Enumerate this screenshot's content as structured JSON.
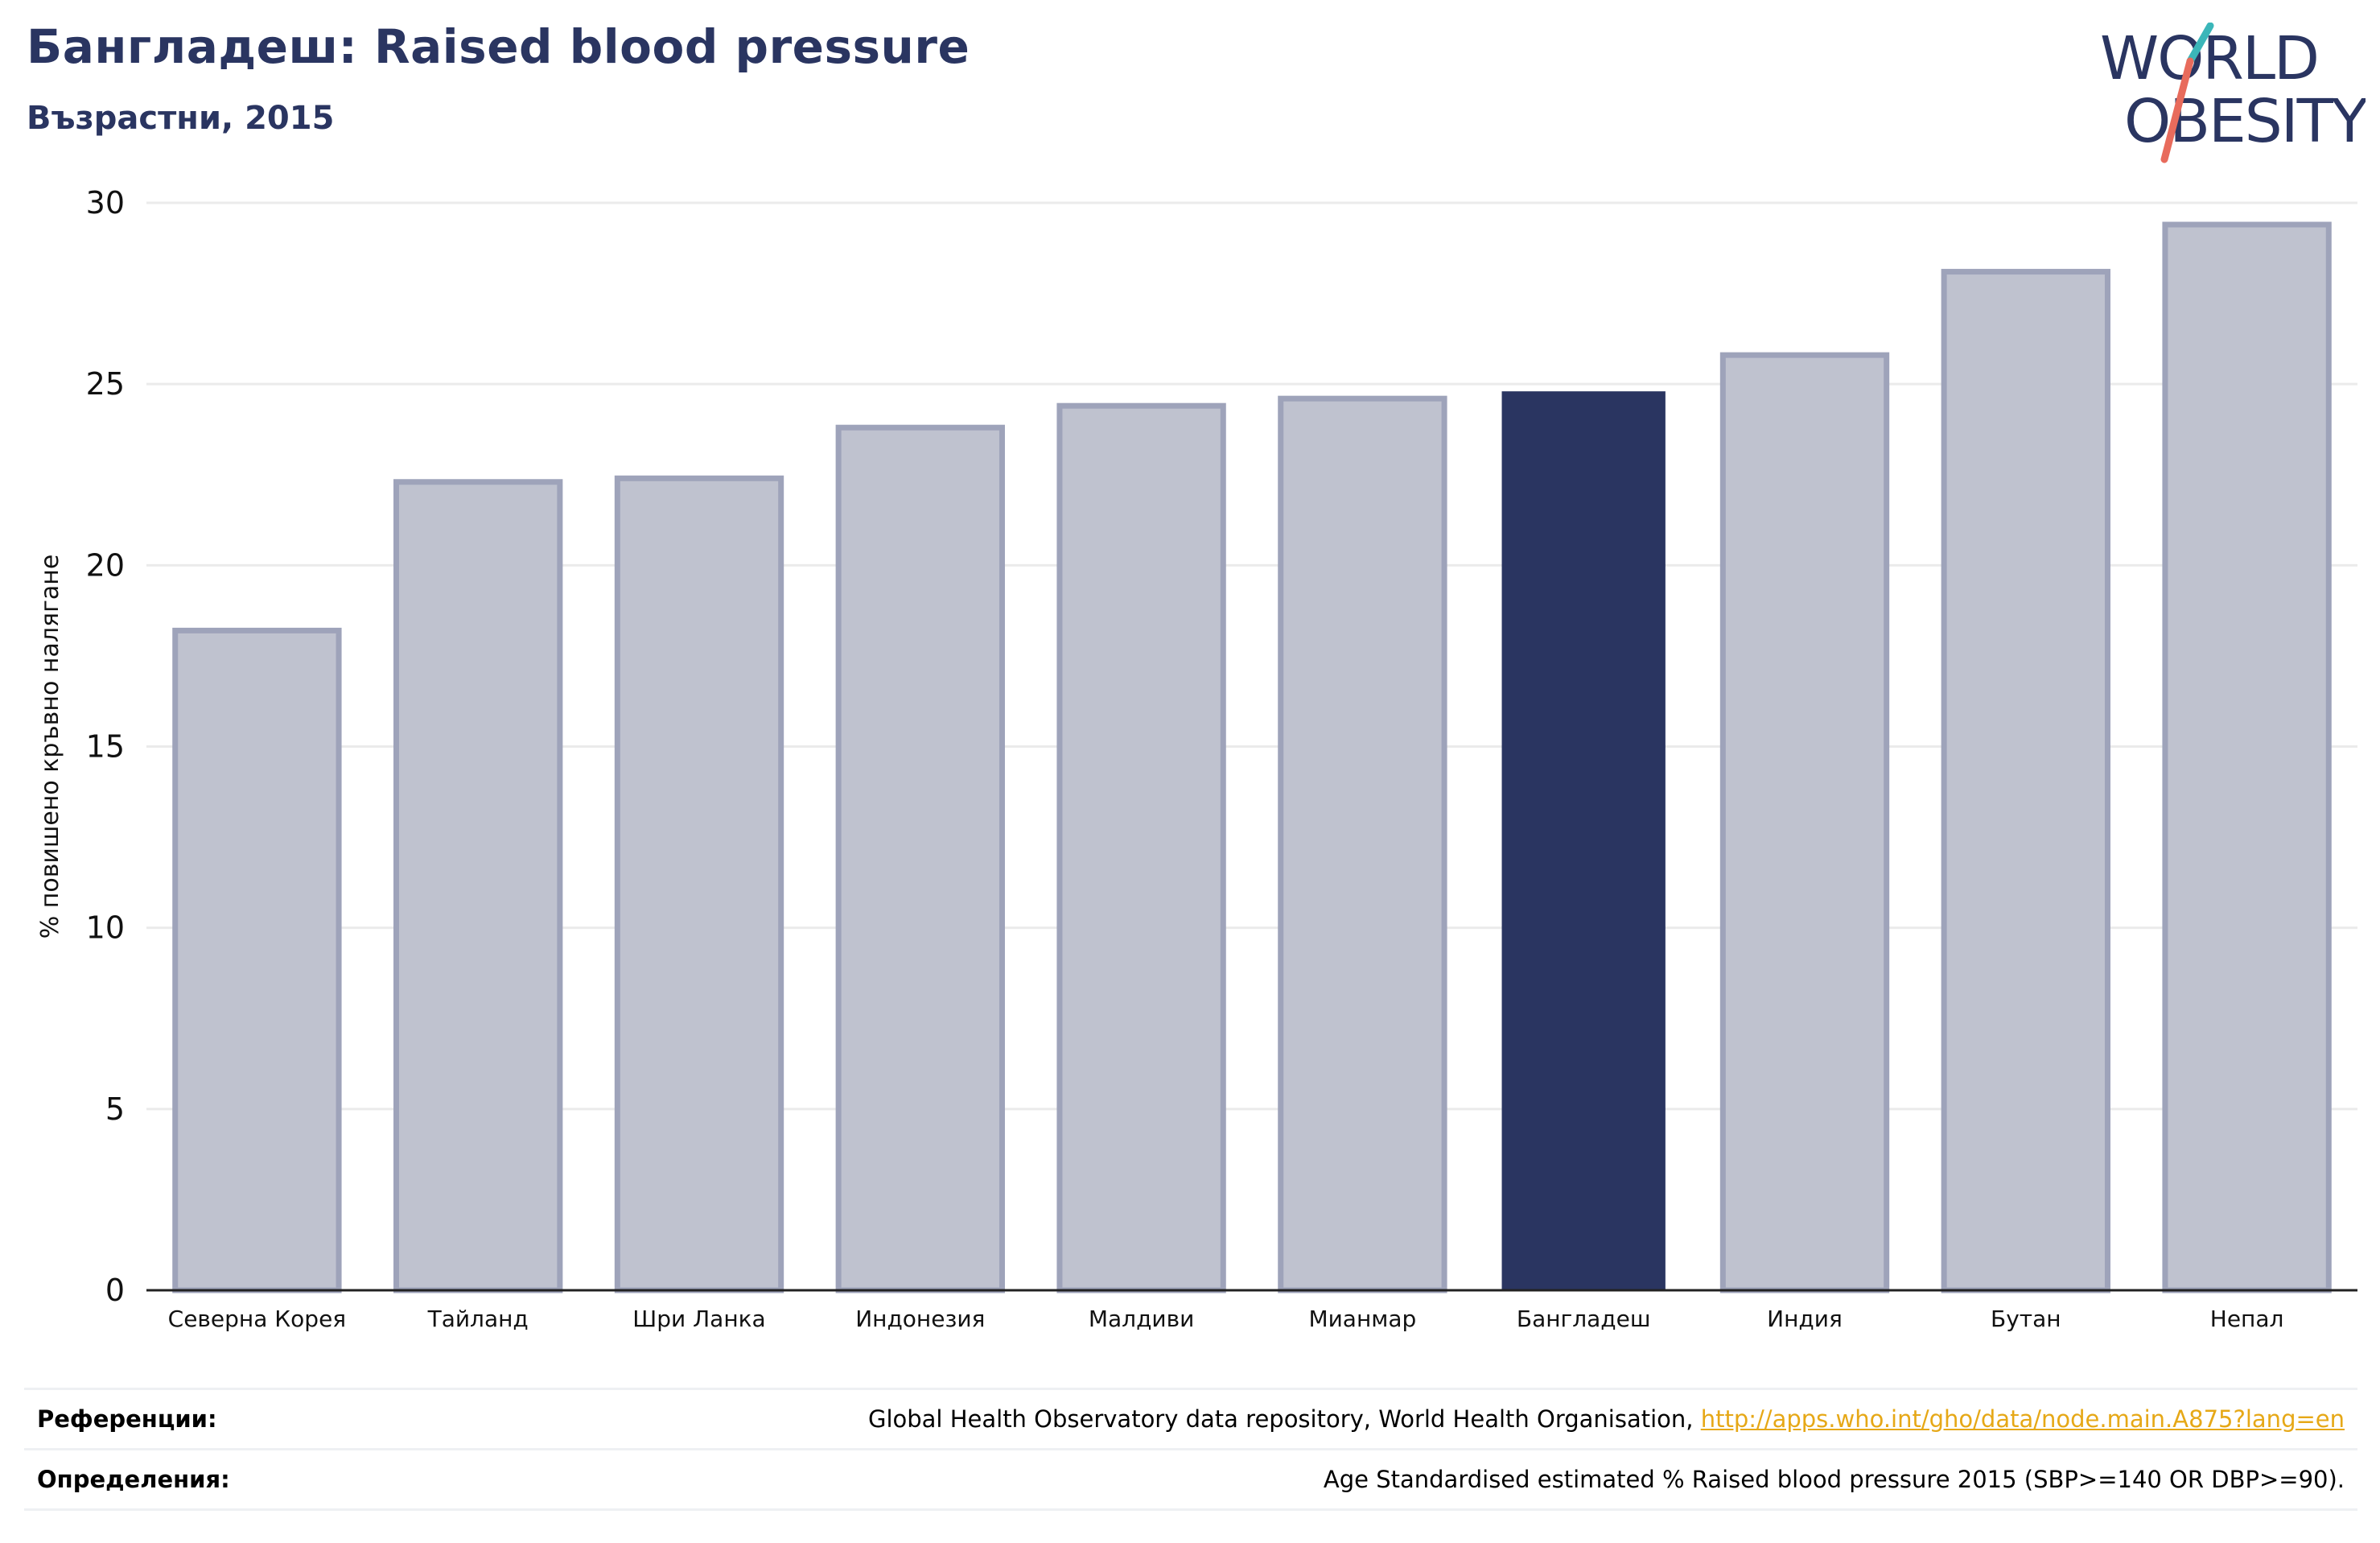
{
  "header": {
    "title": "Бангладеш: Raised blood pressure",
    "subtitle": "Възрастни, 2015"
  },
  "logo": {
    "line1": "WORLD",
    "line2": "OBESITY",
    "name": "world-obesity-logo"
  },
  "colors": {
    "highlight": "#2a3561",
    "bar_fill": "#bfc2cf",
    "bar_stroke": "#9ea3ba",
    "grid": "#ebebeb",
    "link": "#e6a817",
    "logo_teal": "#3bb6b9",
    "logo_coral": "#e86b5c"
  },
  "chart_data": {
    "type": "bar",
    "title": "Бангладеш: Raised blood pressure",
    "subtitle": "Възрастни, 2015",
    "xlabel": "",
    "ylabel": "% повишено кръвно налягане",
    "categories": [
      "Северна Корея",
      "Тайланд",
      "Шри Ланка",
      "Индонезия",
      "Малдиви",
      "Мианмар",
      "Бангладеш",
      "Индия",
      "Бутан",
      "Непал"
    ],
    "values": [
      18.2,
      22.3,
      22.4,
      23.8,
      24.4,
      24.6,
      24.8,
      25.8,
      28.1,
      29.4
    ],
    "highlight": "Бангладеш",
    "ylim": [
      0,
      30
    ],
    "yticks": [
      0,
      5,
      10,
      15,
      20,
      25,
      30
    ],
    "grid": true,
    "legend": "none"
  },
  "references": {
    "sources_label": "Референции:",
    "sources_text": "Global Health Observatory data repository, World Health Organisation, ",
    "sources_link": "http://apps.who.int/gho/data/node.main.A875?lang=en",
    "definitions_label": "Определения:",
    "definitions_text": "Age Standardised estimated % Raised blood pressure 2015 (SBP>=140 OR DBP>=90)."
  }
}
